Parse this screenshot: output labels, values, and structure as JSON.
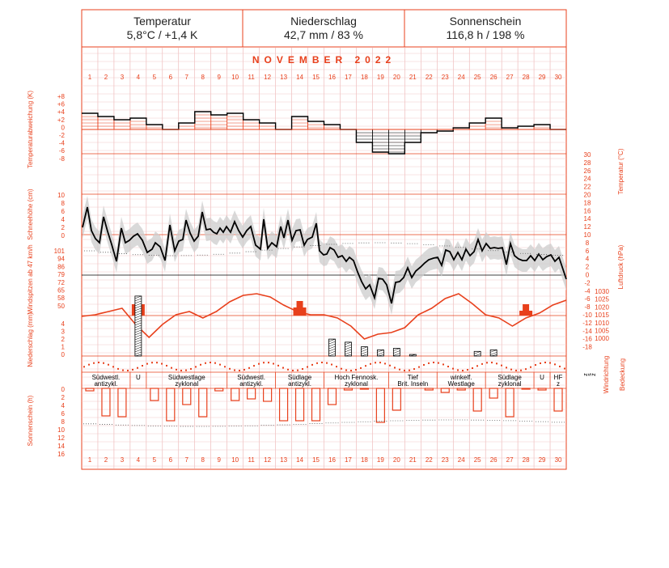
{
  "header": {
    "temperature": {
      "title": "Temperatur",
      "value": "5,8°C / +1,4 K"
    },
    "precipitation": {
      "title": "Niederschlag",
      "value": "42,7 mm / 83 %"
    },
    "sunshine": {
      "title": "Sonnenschein",
      "value": "116,8 h / 198 %"
    }
  },
  "chart_data": {
    "type": "climate-diagram",
    "month_label": "NOVEMBER  2022",
    "days": [
      1,
      2,
      3,
      4,
      5,
      6,
      7,
      8,
      9,
      10,
      11,
      12,
      13,
      14,
      15,
      16,
      17,
      18,
      19,
      20,
      21,
      22,
      23,
      24,
      25,
      26,
      27,
      28,
      29,
      30
    ],
    "colors": {
      "grid_line": "#e8a0a0",
      "accent": "#e8401c",
      "line": "#000000",
      "range_band": "#cccccc"
    },
    "temperature_anomaly": {
      "axis_label": "Temperaturabweichung (K)",
      "ticks": [
        "+8",
        "+6",
        "+4",
        "+2",
        "0",
        "-2",
        "-4",
        "-6",
        "-8"
      ],
      "ylim": [
        -8,
        8
      ],
      "values": [
        5,
        4,
        3,
        3.5,
        1.5,
        0,
        2,
        5.5,
        4.5,
        5,
        3,
        2,
        0,
        4,
        2.5,
        1.5,
        0,
        -4,
        -7,
        -7.5,
        -4,
        -1,
        -0.5,
        0.5,
        2,
        3.5,
        0.5,
        1,
        1.5,
        0
      ]
    },
    "temperature": {
      "axis_label": "Temperatur (°C)",
      "ticks": [
        "30",
        "28",
        "26",
        "24",
        "22",
        "20",
        "18",
        "16",
        "14",
        "12",
        "10",
        "8",
        "6",
        "4",
        "2",
        "0",
        "-2",
        "-4",
        "-6",
        "-8",
        "-10",
        "-12",
        "-14",
        "-16",
        "-18"
      ],
      "ylim": [
        -18,
        30
      ]
    },
    "snow_depth": {
      "axis_label": "Schneehöhe (cm)",
      "ticks": [
        "10",
        "8",
        "6",
        "4",
        "2",
        "0"
      ],
      "ylim": [
        0,
        10
      ]
    },
    "wind_gusts": {
      "axis_label": "Windspitzen ab 47 km/h",
      "ticks": [
        "101",
        "94",
        "86",
        "79",
        "72",
        "65",
        "58",
        "50"
      ]
    },
    "pressure": {
      "axis_label": "Luftdruck (hPa)",
      "ticks": [
        "1030",
        "1025",
        "1020",
        "1015",
        "1010",
        "1005",
        "1000"
      ],
      "ylim": [
        1000,
        1030
      ],
      "values": [
        1015,
        1016,
        1018,
        1020,
        1010,
        1002,
        1010,
        1016,
        1018,
        1014,
        1018,
        1024,
        1028,
        1029,
        1027,
        1022,
        1018,
        1016,
        1016,
        1014,
        1009,
        1001,
        1004,
        1005,
        1008,
        1016,
        1020,
        1026,
        1029,
        1023,
        1016,
        1014,
        1009,
        1014,
        1017,
        1022,
        1025
      ]
    },
    "precipitation": {
      "axis_label": "Niederschlag (mm)",
      "ticks": [
        "4",
        "3",
        "2",
        "1",
        "0"
      ],
      "ylim": [
        0,
        4
      ]
    },
    "wind_direction_cloud": {
      "axis_label": "Windrichtung",
      "cloud_label": "Bedeckung",
      "marks": [
        "z",
        "s",
        "z"
      ]
    },
    "sunshine": {
      "axis_label": "Sonnenschein (h)",
      "ticks": [
        "0",
        "2",
        "4",
        "6",
        "8",
        "10",
        "12",
        "14",
        "16"
      ],
      "ylim": [
        0,
        16
      ],
      "values": [
        0.5,
        0,
        1,
        7,
        7,
        0,
        1.5,
        0,
        8,
        4.5,
        0,
        9,
        0,
        2,
        0,
        3,
        1.5,
        0,
        9,
        8.5,
        0,
        8,
        0,
        7.5,
        0,
        0,
        8.5,
        1,
        0,
        0,
        5,
        0,
        0,
        0,
        1,
        0,
        0.5,
        6,
        0,
        0,
        7,
        0,
        0.5,
        6,
        0
      ]
    },
    "weather_patterns": [
      {
        "start": 1,
        "end": 3,
        "line1": "Südwestl.",
        "line2": "antizykl."
      },
      {
        "start": 4,
        "end": 4,
        "line1": "U",
        "line2": ""
      },
      {
        "start": 5,
        "end": 9,
        "line1": "Südwestlage",
        "line2": "zyklonal"
      },
      {
        "start": 10,
        "end": 12,
        "line1": "Südwestl.",
        "line2": "antizykl."
      },
      {
        "start": 13,
        "end": 15,
        "line1": "Südlage",
        "line2": "antizykl."
      },
      {
        "start": 16,
        "end": 19,
        "line1": "Hoch Fennosk.",
        "line2": "zyklonal"
      },
      {
        "start": 20,
        "end": 22,
        "line1": "Tief",
        "line2": "Brit. Inseln"
      },
      {
        "start": 23,
        "end": 25,
        "line1": "winkelf.",
        "line2": "Westlage"
      },
      {
        "start": 26,
        "end": 28,
        "line1": "Südlage",
        "line2": "zyklonal"
      },
      {
        "start": 29,
        "end": 29,
        "line1": "U",
        "line2": ""
      },
      {
        "start": 30,
        "end": 30,
        "line1": "HF",
        "line2": "z"
      }
    ]
  }
}
